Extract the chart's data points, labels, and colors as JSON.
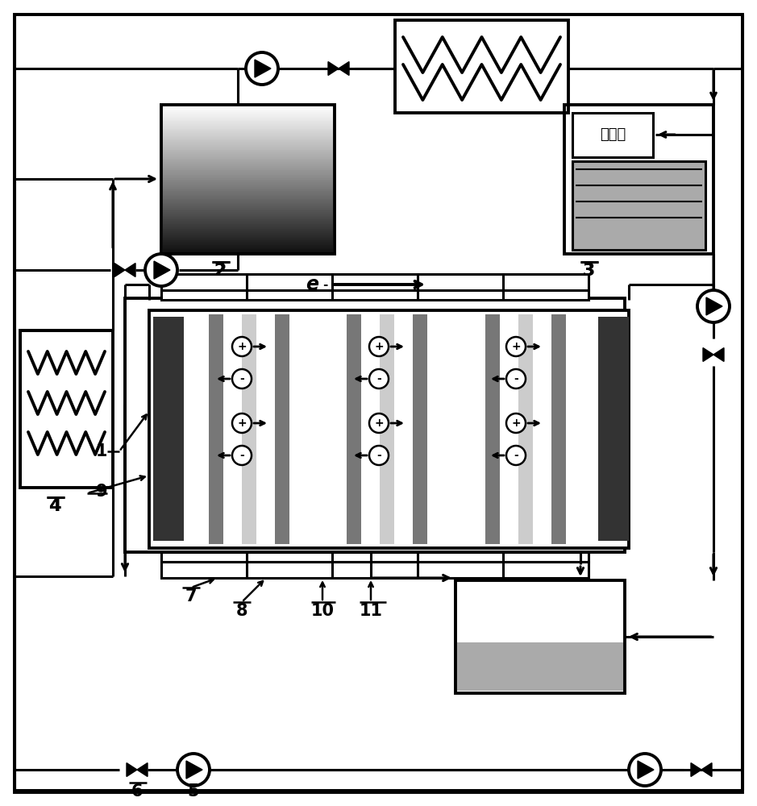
{
  "bg_color": "#ffffff",
  "lc": "#000000",
  "dark_gray": "#333333",
  "mid_gray": "#777777",
  "light_gray": "#aaaaaa",
  "very_light_gray": "#cccccc",
  "cooling_text": "冷却水",
  "electron_label": "e",
  "labels": [
    "1",
    "2",
    "3",
    "4",
    "5",
    "6",
    "7",
    "8",
    "9",
    "10",
    "11"
  ]
}
